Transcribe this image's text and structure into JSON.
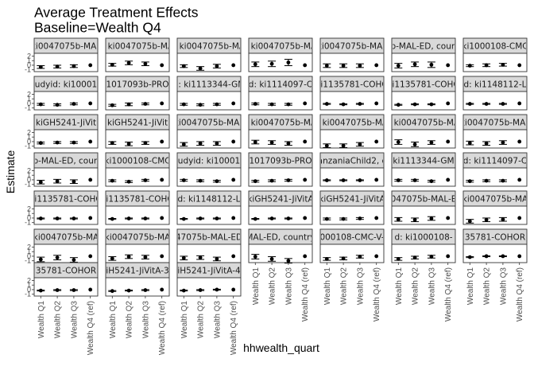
{
  "chart_data": {
    "type": "scatter",
    "title": "Average Treatment Effects",
    "subtitle": "Baseline=Wealth Q4",
    "xlabel": "hhwealth_quart",
    "ylabel": "Estimate",
    "categories": [
      "Wealth Q1",
      "Wealth Q2",
      "Wealth Q3",
      "Wealth Q4 (ref)"
    ],
    "y_ticks": [
      "-1",
      "0",
      "1",
      "2"
    ],
    "ylim": [
      -1.4,
      2.6
    ],
    "grid": false,
    "panels": [
      {
        "label": "ki0047075b-MAL",
        "estimates": [
          -0.4,
          -0.3,
          -0.2,
          0
        ],
        "ci_low": [
          -0.7,
          -0.6,
          -0.5,
          0
        ],
        "ci_high": [
          -0.1,
          0.0,
          0.1,
          0
        ]
      },
      {
        "label": "d: ki0047075b-MAL",
        "estimates": [
          0.1,
          0.5,
          0.3,
          0
        ],
        "ci_low": [
          -0.2,
          0.1,
          -0.1,
          0
        ],
        "ci_high": [
          0.4,
          0.9,
          0.7,
          0
        ]
      },
      {
        "label": "d: ki0047075b-MAL",
        "estimates": [
          -0.2,
          -0.7,
          -0.2,
          0
        ],
        "ci_low": [
          -0.5,
          -1.1,
          -0.6,
          0
        ],
        "ci_high": [
          0.1,
          -0.3,
          0.2,
          0
        ]
      },
      {
        "label": "d: ki0047075b-MAL",
        "estimates": [
          0.2,
          0.3,
          0.6,
          0
        ],
        "ci_low": [
          -0.3,
          -0.3,
          -0.1,
          0
        ],
        "ci_high": [
          0.7,
          0.9,
          1.3,
          0
        ]
      },
      {
        "label": "ki0047075b-MAL",
        "estimates": [
          -0.1,
          -0.1,
          -0.1,
          0
        ],
        "ci_low": [
          -0.5,
          -0.5,
          -0.5,
          0
        ],
        "ci_high": [
          0.3,
          0.3,
          0.3,
          0
        ]
      },
      {
        "label": "b-MAL-ED, coun",
        "estimates": [
          -0.1,
          0.2,
          0.1,
          0
        ],
        "ci_low": [
          -0.6,
          -0.3,
          -0.5,
          0
        ],
        "ci_high": [
          0.4,
          0.7,
          0.7,
          0
        ]
      },
      {
        "label": "ki1000108-CMC",
        "estimates": [
          -0.1,
          0.0,
          0.1,
          0
        ],
        "ci_low": [
          -0.3,
          -0.3,
          -0.2,
          0
        ],
        "ci_high": [
          0.1,
          0.3,
          0.4,
          0
        ]
      },
      {
        "label": "udyid: ki10001",
        "estimates": [
          -0.2,
          -0.3,
          -0.1,
          0
        ],
        "ci_low": [
          -0.4,
          -0.5,
          -0.3,
          0
        ],
        "ci_high": [
          0.0,
          -0.1,
          0.1,
          0
        ]
      },
      {
        "label": "1017093b-PRO",
        "estimates": [
          -0.4,
          -0.2,
          -0.1,
          0
        ],
        "ci_low": [
          -0.6,
          -0.5,
          -0.3,
          0
        ],
        "ci_high": [
          -0.2,
          0.1,
          0.1,
          0
        ]
      },
      {
        "label": "d: ki1113344-GM",
        "estimates": [
          -0.2,
          -0.3,
          -0.2,
          0
        ],
        "ci_low": [
          -0.4,
          -0.5,
          -0.4,
          0
        ],
        "ci_high": [
          0.0,
          -0.1,
          0.0,
          0
        ]
      },
      {
        "label": "d: ki1114097-C",
        "estimates": [
          -0.1,
          -0.2,
          -0.2,
          0
        ],
        "ci_low": [
          -0.3,
          -0.4,
          -0.4,
          0
        ],
        "ci_high": [
          0.1,
          0.0,
          0.0,
          0
        ]
      },
      {
        "label": "ki1135781-COHO",
        "estimates": [
          -0.1,
          -0.2,
          -0.1,
          0
        ],
        "ci_low": [
          -0.2,
          -0.3,
          -0.2,
          0
        ],
        "ci_high": [
          0.0,
          -0.1,
          0.0,
          0
        ]
      },
      {
        "label": "ki1135781-COHO",
        "estimates": [
          -0.3,
          -0.2,
          -0.2,
          0
        ],
        "ci_low": [
          -0.4,
          -0.3,
          -0.3,
          0
        ],
        "ci_high": [
          -0.2,
          -0.1,
          -0.1,
          0
        ]
      },
      {
        "label": "d: ki1148112-L",
        "estimates": [
          -0.1,
          -0.1,
          -0.1,
          0
        ],
        "ci_low": [
          -0.2,
          -0.2,
          -0.2,
          0
        ],
        "ci_high": [
          0.0,
          0.0,
          0.0,
          0
        ]
      },
      {
        "label": "kiGH5241-JiVit",
        "estimates": [
          -0.3,
          -0.2,
          -0.2,
          0
        ],
        "ci_low": [
          -0.5,
          -0.4,
          -0.4,
          0
        ],
        "ci_high": [
          -0.1,
          0.0,
          0.0,
          0
        ]
      },
      {
        "label": "kiGH5241-JiVit",
        "estimates": [
          -0.3,
          -0.5,
          -0.3,
          0
        ],
        "ci_low": [
          -0.6,
          -0.9,
          -0.6,
          0
        ],
        "ci_high": [
          0.0,
          -0.1,
          0.0,
          0
        ]
      },
      {
        "label": "ki0047075b-MAL",
        "estimates": [
          -0.6,
          -0.4,
          -0.4,
          0
        ],
        "ci_low": [
          -1.0,
          -0.8,
          -0.8,
          0
        ],
        "ci_high": [
          -0.2,
          0.0,
          0.0,
          0
        ]
      },
      {
        "label": "d: ki0047075b-MAL",
        "estimates": [
          -0.1,
          -0.2,
          -0.4,
          0
        ],
        "ci_low": [
          -0.5,
          -0.6,
          -0.8,
          0
        ],
        "ci_high": [
          0.3,
          0.2,
          0.0,
          0
        ]
      },
      {
        "label": "d: ki0047075b-MAL",
        "estimates": [
          -0.9,
          -0.9,
          -0.6,
          0
        ],
        "ci_low": [
          -1.3,
          -1.3,
          -1.0,
          0
        ],
        "ci_high": [
          -0.5,
          -0.5,
          -0.2,
          0
        ]
      },
      {
        "label": "d: ki0047075b-MAL",
        "estimates": [
          -0.1,
          -0.6,
          -0.2,
          0
        ],
        "ci_low": [
          -0.6,
          -1.1,
          -0.6,
          0
        ],
        "ci_high": [
          0.4,
          -0.1,
          0.2,
          0
        ]
      },
      {
        "label": "ki0047075b-MAL",
        "estimates": [
          -0.3,
          -0.4,
          -0.2,
          0
        ],
        "ci_low": [
          -0.7,
          -0.8,
          -0.6,
          0
        ],
        "ci_high": [
          0.1,
          0.0,
          0.2,
          0
        ]
      },
      {
        "label": "b-MAL-ED, coun",
        "estimates": [
          -0.5,
          -0.3,
          -0.4,
          0
        ],
        "ci_low": [
          -0.9,
          -0.7,
          -0.8,
          0
        ],
        "ci_high": [
          -0.1,
          0.1,
          0.0,
          0
        ]
      },
      {
        "label": "ki1000108-CMC",
        "estimates": [
          -0.2,
          -0.4,
          -0.1,
          0
        ],
        "ci_low": [
          -0.4,
          -0.6,
          -0.3,
          0
        ],
        "ci_high": [
          0.0,
          -0.2,
          0.1,
          0
        ]
      },
      {
        "label": "udyid: ki10001",
        "estimates": [
          -0.1,
          -0.2,
          -0.3,
          0
        ],
        "ci_low": [
          -0.3,
          -0.4,
          -0.5,
          0
        ],
        "ci_high": [
          0.1,
          0.0,
          -0.1,
          0
        ]
      },
      {
        "label": "1017093b-PRO",
        "estimates": [
          -0.3,
          -0.2,
          -0.1,
          0
        ],
        "ci_low": [
          -0.5,
          -0.4,
          -0.3,
          0
        ],
        "ci_high": [
          -0.1,
          0.0,
          0.1,
          0
        ]
      },
      {
        "label": "anzaniaChild2, c",
        "estimates": [
          -0.1,
          -0.1,
          -0.1,
          0
        ],
        "ci_low": [
          -0.2,
          -0.2,
          -0.2,
          0
        ],
        "ci_high": [
          0.0,
          0.0,
          0.0,
          0
        ]
      },
      {
        "label": "ki1113344-GM",
        "estimates": [
          -0.1,
          -0.1,
          -0.3,
          0
        ],
        "ci_low": [
          -0.3,
          -0.3,
          -0.5,
          0
        ],
        "ci_high": [
          0.1,
          0.1,
          -0.1,
          0
        ]
      },
      {
        "label": "d: ki1114097-C",
        "estimates": [
          -0.3,
          -0.2,
          -0.2,
          0
        ],
        "ci_low": [
          -0.5,
          -0.4,
          -0.4,
          0
        ],
        "ci_high": [
          -0.1,
          0.0,
          0.0,
          0
        ]
      },
      {
        "label": "ki1135781-COHO",
        "estimates": [
          -0.1,
          -0.1,
          -0.1,
          0
        ],
        "ci_low": [
          -0.2,
          -0.2,
          -0.2,
          0
        ],
        "ci_high": [
          0.0,
          0.0,
          0.0,
          0
        ]
      },
      {
        "label": "ki1135781-COHO",
        "estimates": [
          -0.2,
          -0.1,
          -0.1,
          0
        ],
        "ci_low": [
          -0.3,
          -0.2,
          -0.2,
          0
        ],
        "ci_high": [
          -0.1,
          0.0,
          0.0,
          0
        ]
      },
      {
        "label": "d: ki1148112-L",
        "estimates": [
          -0.2,
          -0.1,
          -0.1,
          0
        ],
        "ci_low": [
          -0.3,
          -0.2,
          -0.2,
          0
        ],
        "ci_high": [
          -0.1,
          0.0,
          0.0,
          0
        ]
      },
      {
        "label": "kiGH5241-JiVitA",
        "estimates": [
          -0.2,
          -0.1,
          -0.1,
          0
        ],
        "ci_low": [
          -0.3,
          -0.2,
          -0.2,
          0
        ],
        "ci_high": [
          -0.1,
          0.0,
          0.0,
          0
        ]
      },
      {
        "label": "kiGH5241-JiVitA",
        "estimates": [
          -0.2,
          -0.2,
          -0.1,
          0
        ],
        "ci_low": [
          -0.4,
          -0.4,
          -0.3,
          0
        ],
        "ci_high": [
          0.0,
          0.0,
          0.1,
          0
        ]
      },
      {
        "label": "047075b-MAL-E",
        "estimates": [
          -0.3,
          -0.4,
          -0.1,
          0
        ],
        "ci_low": [
          -0.7,
          -0.8,
          -0.5,
          0
        ],
        "ci_high": [
          0.1,
          0.0,
          0.3,
          0
        ]
      },
      {
        "label": "ki0047075b-MA",
        "estimates": [
          -0.7,
          -0.4,
          -0.3,
          0
        ],
        "ci_low": [
          -1.1,
          -0.8,
          -0.7,
          0
        ],
        "ci_high": [
          -0.3,
          0.0,
          0.1,
          0
        ]
      },
      {
        "label": "ki0047075b-MA",
        "estimates": [
          -0.7,
          -0.3,
          -0.8,
          0
        ],
        "ci_low": [
          -1.2,
          -0.8,
          -1.3,
          0
        ],
        "ci_high": [
          -0.2,
          0.2,
          -0.3,
          0
        ]
      },
      {
        "label": "ki0047075b-MA",
        "estimates": [
          -0.5,
          -0.1,
          -0.2,
          0
        ],
        "ci_low": [
          -0.9,
          -0.5,
          -0.6,
          0
        ],
        "ci_high": [
          -0.1,
          0.3,
          0.2,
          0
        ]
      },
      {
        "label": "47075b-MAL-ED",
        "estimates": [
          -0.4,
          -0.3,
          -0.6,
          0
        ],
        "ci_low": [
          -0.8,
          -0.7,
          -1.0,
          0
        ],
        "ci_high": [
          0.0,
          0.1,
          -0.2,
          0
        ]
      },
      {
        "label": "MAL-ED, country",
        "estimates": [
          -0.1,
          -0.6,
          -1.0,
          0
        ],
        "ci_low": [
          -0.6,
          -1.1,
          -1.5,
          0
        ],
        "ci_high": [
          0.4,
          -0.1,
          -0.5,
          0
        ]
      },
      {
        "label": "000108-CMC-V-",
        "estimates": [
          -0.6,
          -0.5,
          -0.1,
          0
        ],
        "ci_low": [
          -0.9,
          -0.8,
          -0.4,
          0
        ],
        "ci_high": [
          -0.3,
          -0.2,
          0.2,
          0
        ]
      },
      {
        "label": "d: ki1000108-",
        "estimates": [
          -0.6,
          -0.3,
          -0.1,
          0
        ],
        "ci_low": [
          -0.9,
          -0.6,
          -0.4,
          0
        ],
        "ci_high": [
          -0.3,
          0.0,
          0.2,
          0
        ]
      },
      {
        "label": "35781-COHOR",
        "estimates": [
          -0.2,
          0.0,
          0.0,
          0
        ],
        "ci_low": [
          -0.3,
          -0.1,
          -0.1,
          0
        ],
        "ci_high": [
          -0.1,
          0.1,
          0.1,
          0
        ]
      },
      {
        "label": "35781-COHOR",
        "estimates": [
          -0.2,
          -0.1,
          -0.1,
          0
        ],
        "ci_low": [
          -0.3,
          -0.2,
          -0.2,
          0
        ],
        "ci_high": [
          -0.1,
          0.0,
          0.0,
          0
        ]
      },
      {
        "label": "iH5241-JiVitA-3",
        "estimates": [
          -0.3,
          -0.2,
          -0.1,
          0
        ],
        "ci_low": [
          -0.4,
          -0.3,
          -0.2,
          0
        ],
        "ci_high": [
          -0.2,
          -0.1,
          0.0,
          0
        ]
      },
      {
        "label": "iH5241-JiVitA-4",
        "estimates": [
          -0.2,
          -0.1,
          0.0,
          0
        ],
        "ci_low": [
          -0.3,
          -0.2,
          -0.1,
          0
        ],
        "ci_high": [
          -0.1,
          0.0,
          0.1,
          0
        ]
      }
    ]
  }
}
